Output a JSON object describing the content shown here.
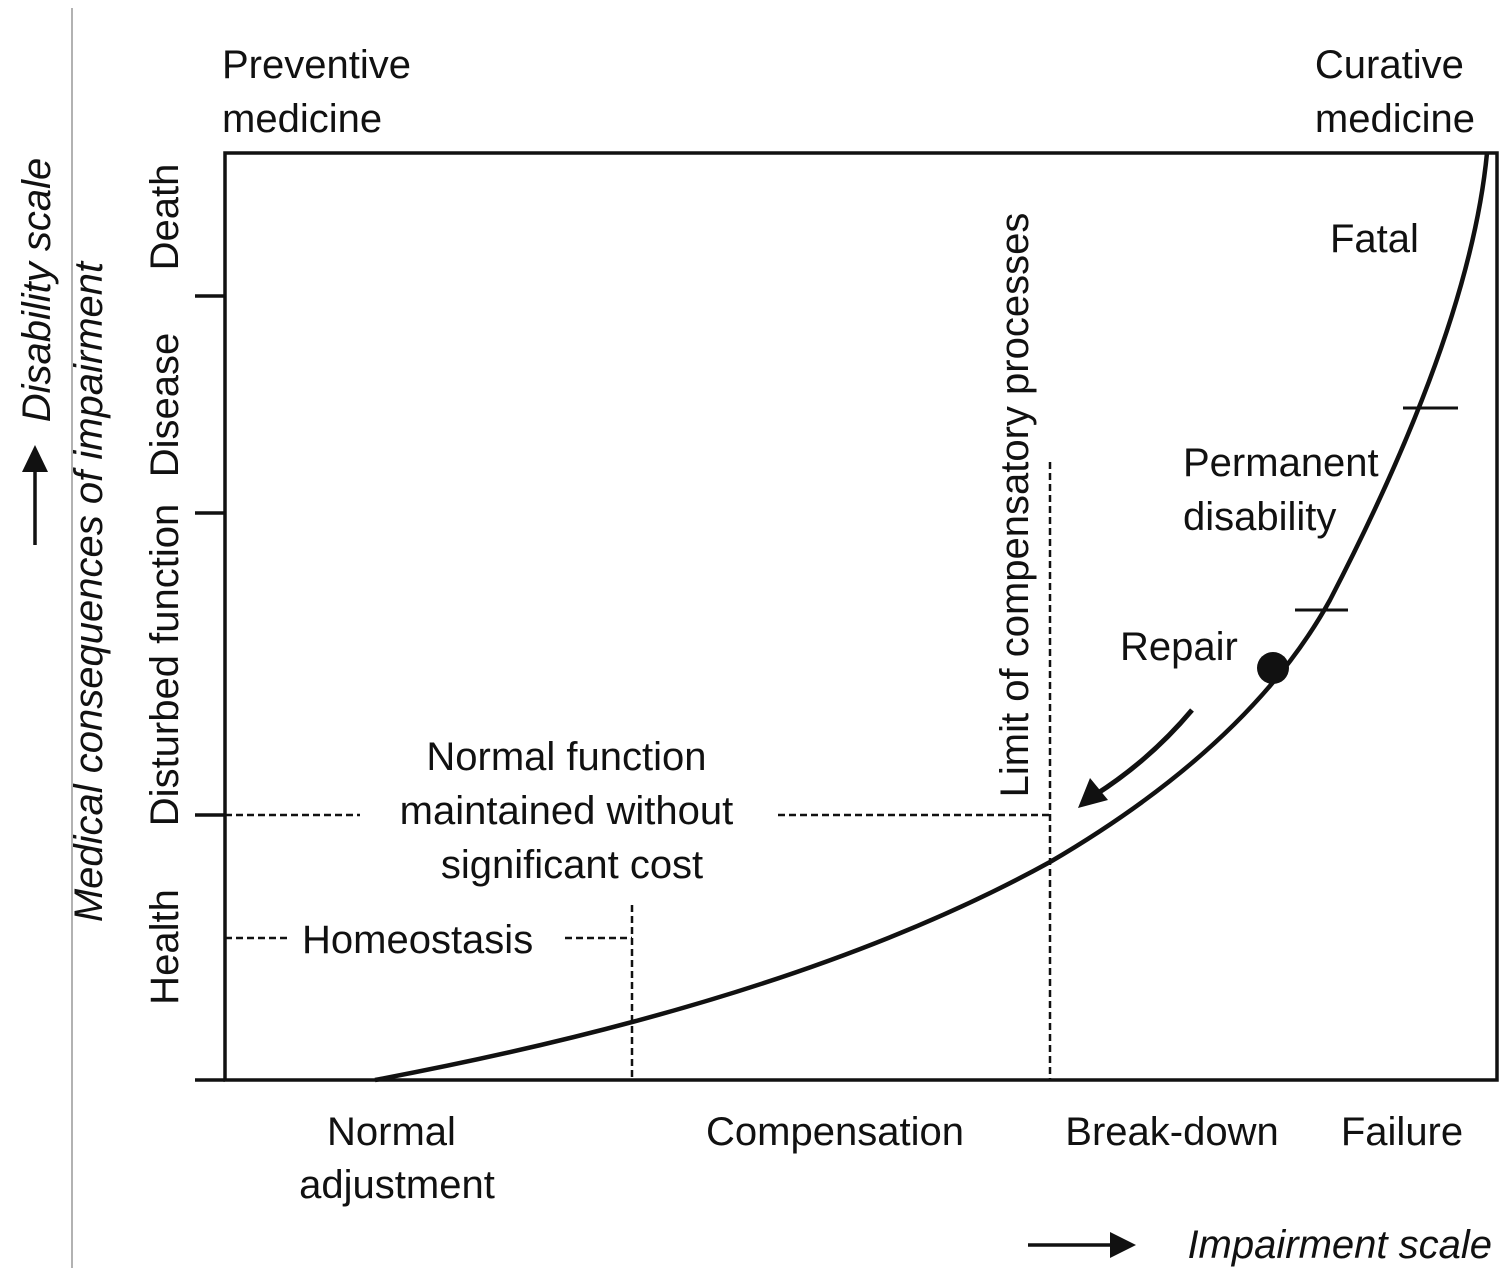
{
  "top_labels": {
    "preventive": [
      "Preventive",
      "medicine"
    ],
    "curative": [
      "Curative",
      "medicine"
    ]
  },
  "y_axis": {
    "title": "Disability scale",
    "subtitle": "Medical consequences of impairment",
    "bands": [
      "Health",
      "Disturbed function",
      "Disease",
      "Death"
    ]
  },
  "x_axis": {
    "title": "Impairment scale",
    "bands": [
      [
        "Normal",
        "adjustment"
      ],
      [
        "Compensation"
      ],
      [
        "Break-down"
      ],
      [
        "Failure"
      ]
    ]
  },
  "regions": {
    "fatal": "Fatal",
    "permanent": [
      "Permanent",
      "disability"
    ],
    "repair": "Repair"
  },
  "limit": "Limit of compensatory processes",
  "normal_function": [
    "Normal function",
    "maintained without",
    "significant cost"
  ],
  "homeostasis": "Homeostasis"
}
